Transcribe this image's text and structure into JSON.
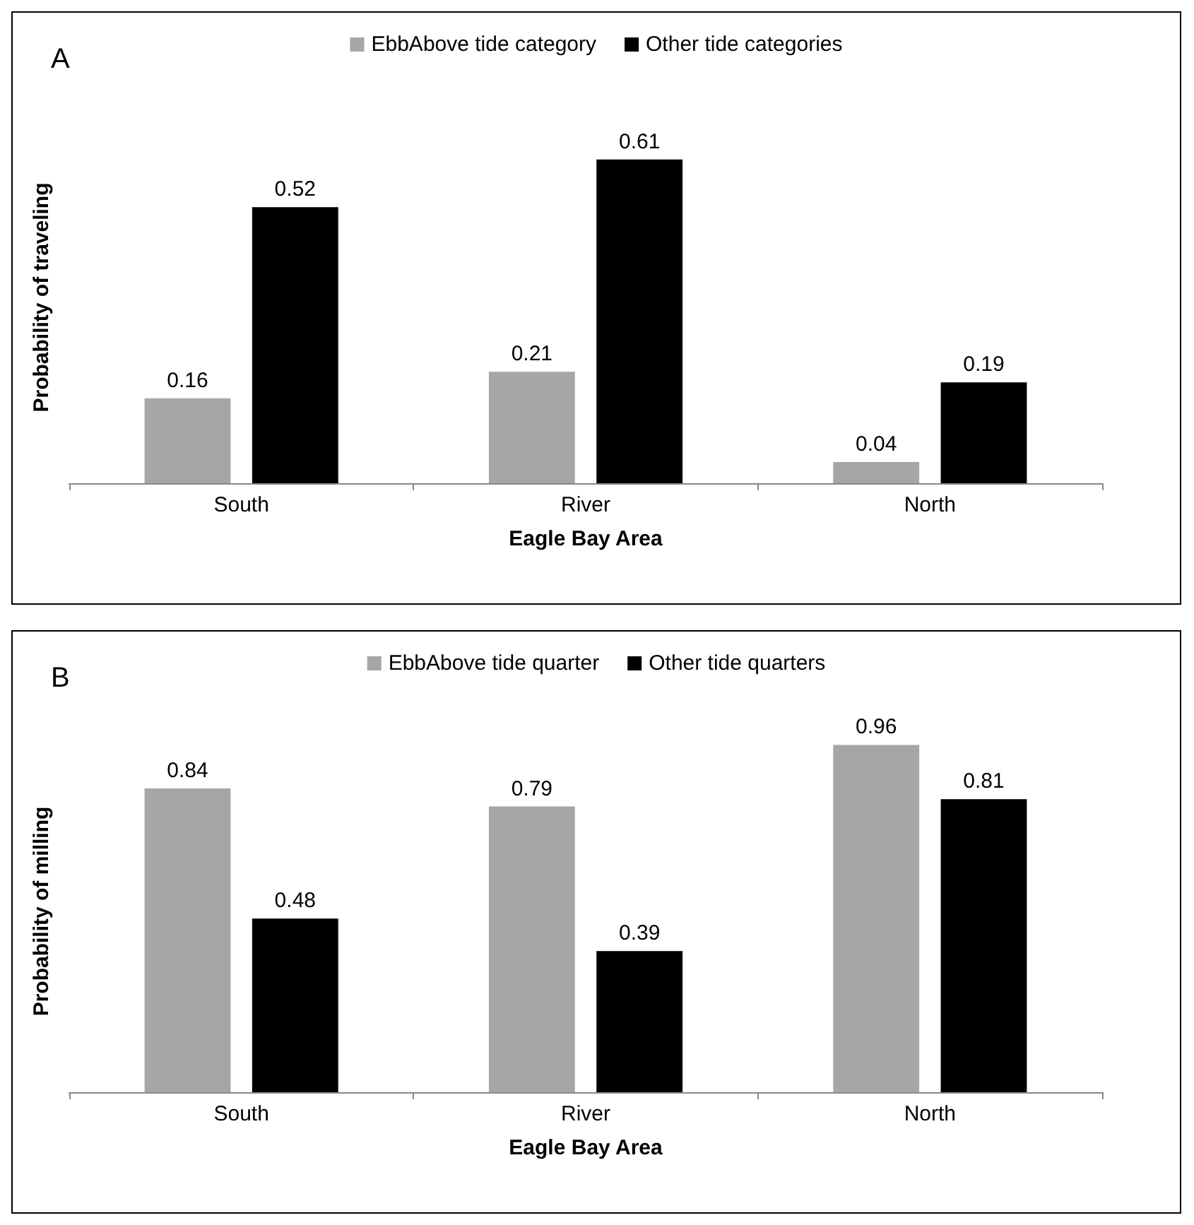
{
  "chart_data": [
    {
      "type": "bar",
      "title": "A",
      "xlabel": "Eagle Bay Area",
      "ylabel": "Probability of traveling",
      "categories": [
        "South",
        "River",
        "North"
      ],
      "series": [
        {
          "name": "EbbAbove tide category",
          "color": "#a6a6a6",
          "values": [
            0.16,
            0.21,
            0.04
          ]
        },
        {
          "name": "Other tide categories",
          "color": "#000000",
          "values": [
            0.52,
            0.61,
            0.19
          ]
        }
      ],
      "data_labels": true,
      "legend": "top",
      "grid": false
    },
    {
      "type": "bar",
      "title": "B",
      "xlabel": "Eagle Bay Area",
      "ylabel": "Probability of milling",
      "categories": [
        "South",
        "River",
        "North"
      ],
      "series": [
        {
          "name": "EbbAbove tide quarter",
          "color": "#a6a6a6",
          "values": [
            0.84,
            0.79,
            0.96
          ]
        },
        {
          "name": "Other tide quarters",
          "color": "#000000",
          "values": [
            0.48,
            0.39,
            0.81
          ]
        }
      ],
      "data_labels": true,
      "legend": "top",
      "grid": false
    }
  ]
}
